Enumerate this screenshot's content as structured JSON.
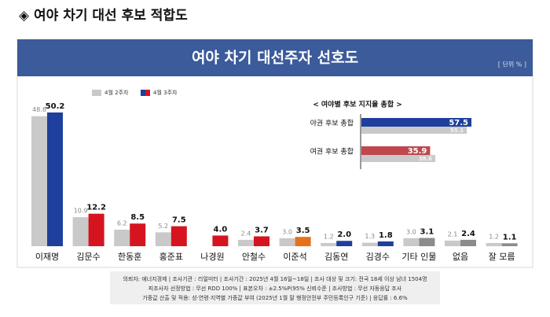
{
  "header": "◈ 여야 차기 대선 후보 적합도",
  "banner": "여야 차기 대선주자 선호도",
  "unit": "[ 단위 % ]",
  "notes": [
    "의뢰자: 에너지경제 | 조사기관 : 리얼미터 | 조사기간 : 2025년 4월 16일~18일 | 조사 대상 및 크기: 전국 18세 이상 남녀 1504명",
    "피조사자 선정방법 : 무선 RDD 100% | 표본오차 : ±2.5%P(95% 신뢰수준 | 조사방법 : 무선 자동응답 조사",
    "가중값 산출 및 적용: 성·연령·지역별 가중값 부여 (2025년 1월 말 행정안전부 주민등록인구 기준) | 응답률 : 6.6%"
  ],
  "chart_data": [
    {
      "type": "bar",
      "categories": [
        "이재명",
        "김문수",
        "한동훈",
        "홍준표",
        "나경원",
        "안철수",
        "이준석",
        "김동연",
        "김경수",
        "기타 인물",
        "없음",
        "잘 모름"
      ],
      "series": [
        {
          "name": "4월 2주차",
          "color": "#c9c9c9",
          "values": [
            48.8,
            10.9,
            6.2,
            5.2,
            null,
            2.4,
            3.0,
            1.2,
            1.3,
            3.0,
            2.1,
            1.2
          ],
          "value_labels": [
            "48.8",
            "10.9",
            "6.2",
            "5.2",
            null,
            "2.4",
            "3.0",
            "1.2",
            "1.3",
            "3.0",
            "2.1",
            "1.2"
          ]
        },
        {
          "name": "4월 3주차",
          "color": [
            "#1f3f9c",
            "#d5141f",
            "#d5141f",
            "#d5141f",
            "#d5141f",
            "#d5141f",
            "#e5711d",
            "#1f3f9c",
            "#1f3f9c",
            "#8c8c8c",
            "#8c8c8c",
            "#8c8c8c"
          ],
          "values": [
            50.2,
            12.2,
            8.5,
            7.5,
            4.0,
            3.7,
            3.5,
            2.0,
            1.8,
            3.1,
            2.4,
            1.1
          ],
          "value_labels": [
            "50.2",
            "12.2",
            "8.5",
            "7.5",
            "4.0",
            "3.7",
            "3.5",
            "2.0",
            "1.8",
            "3.1",
            "2.4",
            "1.1"
          ]
        }
      ]
    },
    {
      "type": "barh",
      "title": "< 여야별 후보 지지율 총합 >",
      "categories": [
        "야권 후보 총합",
        "여권 후보 총합"
      ],
      "series": [
        {
          "name": "4월 3주차",
          "color": [
            "#1f3f9c",
            "#c0474d"
          ],
          "values": [
            57.5,
            35.9
          ]
        },
        {
          "name": "4월 2주차",
          "color": "#c9c9c9",
          "values": [
            55.1,
            38.6
          ]
        }
      ]
    }
  ]
}
